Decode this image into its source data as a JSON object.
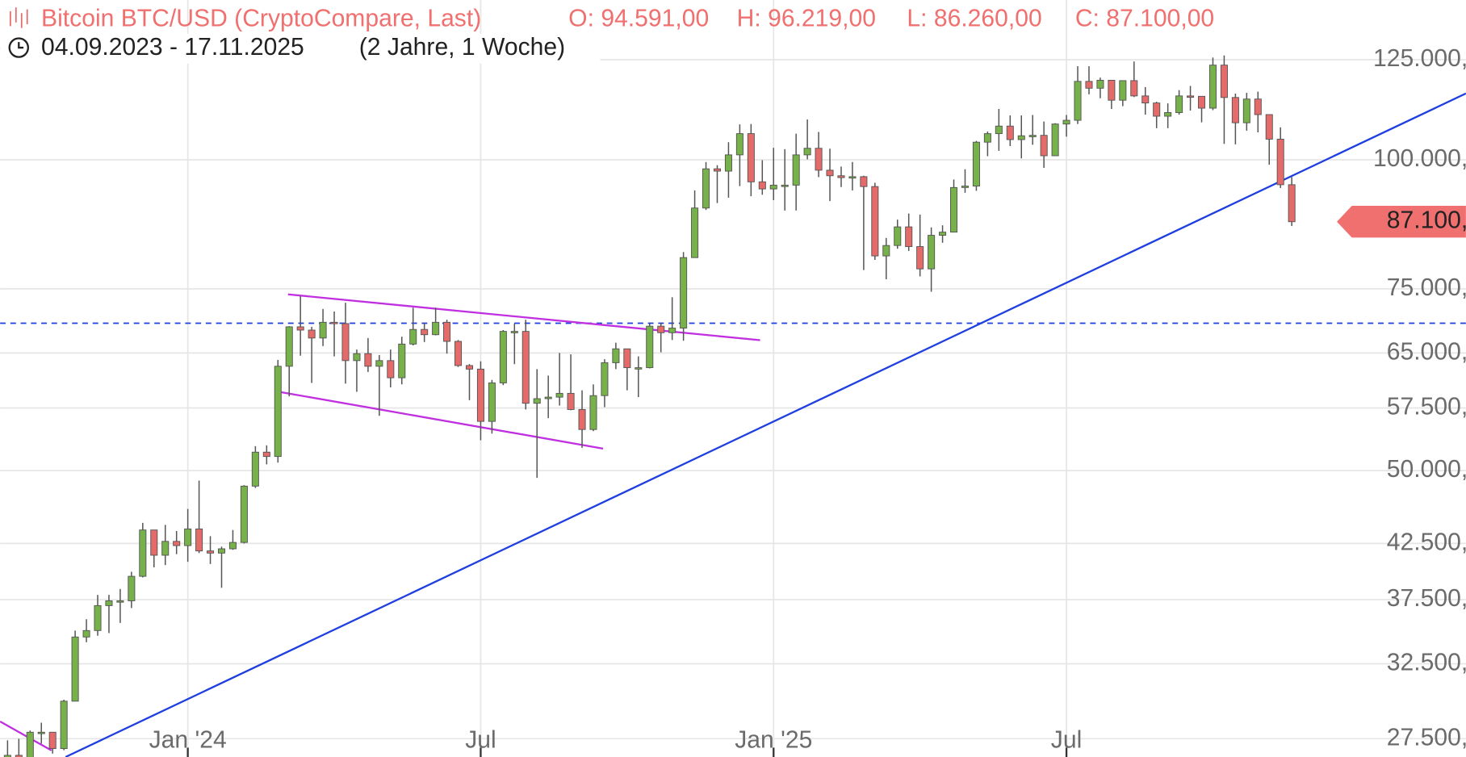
{
  "chart_data": {
    "type": "candlestick",
    "title": "Bitcoin BTC/USD (CryptoCompare, Last)",
    "ohlc_labels": [
      "O: 94.591,00",
      "H: 96.219,00",
      "L: 86.260,00",
      "C: 87.100,00"
    ],
    "date_range": "04.09.2023 - 17.11.2025",
    "duration": "(2 Jahre, 1 Woche)",
    "log_scale": true,
    "grid": true,
    "up_color": "#77b14a",
    "down_color": "#e56b6b",
    "wick_color": "#555555",
    "ylim": [
      26400,
      142800
    ],
    "yticks": [
      {
        "value": 27500,
        "label": "27.500,"
      },
      {
        "value": 32500,
        "label": "32.500,"
      },
      {
        "value": 37500,
        "label": "37.500,"
      },
      {
        "value": 42500,
        "label": "42.500,"
      },
      {
        "value": 50000,
        "label": "50.000,"
      },
      {
        "value": 57500,
        "label": "57.500,"
      },
      {
        "value": 65000,
        "label": "65.000,"
      },
      {
        "value": 75000,
        "label": "75.000,"
      },
      {
        "value": 100000,
        "label": "100.000,"
      },
      {
        "value": 125000,
        "label": "125.000,"
      }
    ],
    "last_price": {
      "value": 87100,
      "label": "87.100,"
    },
    "horizontal_line": 69450,
    "categories": [
      null,
      null,
      null,
      null,
      null,
      null,
      null,
      null,
      null,
      null,
      null,
      null,
      null,
      null,
      null,
      null,
      "Jan '24",
      null,
      null,
      null,
      null,
      null,
      null,
      null,
      null,
      null,
      null,
      null,
      null,
      null,
      null,
      null,
      null,
      null,
      null,
      null,
      null,
      null,
      null,
      null,
      null,
      null,
      "Jul",
      null,
      null,
      null,
      null,
      null,
      null,
      null,
      null,
      null,
      null,
      null,
      null,
      null,
      null,
      null,
      null,
      null,
      null,
      null,
      null,
      null,
      null,
      null,
      null,
      null,
      "Jan '25",
      null,
      null,
      null,
      null,
      null,
      null,
      null,
      null,
      null,
      null,
      null,
      null,
      null,
      null,
      null,
      null,
      null,
      null,
      null,
      null,
      null,
      null,
      null,
      null,
      null,
      "Jul",
      null,
      null,
      null,
      null,
      null,
      null,
      null,
      null,
      null,
      null,
      null,
      null,
      null,
      null,
      null,
      null,
      null,
      null,
      null,
      null
    ],
    "open": [
      25800,
      26500,
      26200,
      27900,
      27900,
      26900,
      29900,
      34500,
      35000,
      37000,
      37400,
      37400,
      39500,
      43800,
      41400,
      42700,
      42300,
      43900,
      41800,
      41600,
      42000,
      42600,
      48300,
      52100,
      51600,
      63100,
      68900,
      68400,
      67200,
      69600,
      69400,
      63900,
      64900,
      63100,
      63900,
      61500,
      66300,
      68500,
      67700,
      69600,
      66700,
      63200,
      62700,
      55800,
      60800,
      68200,
      68200,
      58100,
      58700,
      58900,
      59400,
      57300,
      54800,
      59100,
      63600,
      65600,
      62900,
      62900,
      69000,
      68000,
      68700,
      80400,
      89800,
      98000,
      97500,
      101100,
      106000,
      95200,
      93700,
      94500,
      94500,
      101100,
      102600,
      97700,
      96500,
      96100,
      96300,
      94200,
      80700,
      82600,
      86100,
      82400,
      78400,
      84500,
      85100,
      94000,
      94300,
      104000,
      106000,
      107800,
      104600,
      105500,
      105600,
      100900,
      108300,
      109200,
      119100,
      117300,
      119400,
      114200,
      119300,
      115300,
      113500,
      110200,
      111100,
      115300,
      115200,
      112200,
      123500,
      114900,
      108600,
      114500,
      110600,
      104700,
      94591
    ],
    "high": [
      27400,
      27500,
      28000,
      28500,
      27900,
      30000,
      35000,
      35900,
      37900,
      37900,
      38400,
      39900,
      44500,
      43800,
      44300,
      43700,
      45900,
      48900,
      43200,
      42200,
      43800,
      48400,
      52800,
      52900,
      64000,
      69000,
      73800,
      68900,
      71700,
      71300,
      72700,
      65500,
      67200,
      64700,
      65500,
      67400,
      71900,
      69500,
      71900,
      70000,
      66900,
      63400,
      63800,
      61200,
      68400,
      69400,
      70000,
      62700,
      61800,
      65000,
      64800,
      59800,
      60600,
      64100,
      66500,
      65600,
      64500,
      69400,
      69500,
      73600,
      81400,
      93400,
      99500,
      98800,
      104000,
      108200,
      108300,
      99900,
      102700,
      102400,
      106000,
      109400,
      106400,
      102500,
      98500,
      99500,
      96500,
      95000,
      84000,
      87500,
      88700,
      88500,
      86000,
      86400,
      95700,
      97900,
      104300,
      106500,
      112000,
      110400,
      110400,
      110500,
      108900,
      108500,
      110500,
      123200,
      123200,
      120100,
      119500,
      119300,
      124500,
      117600,
      113800,
      113400,
      116800,
      117900,
      115200,
      125600,
      126200,
      115900,
      116100,
      116400,
      110600,
      107500,
      96219
    ],
    "low": [
      25800,
      26000,
      26000,
      27200,
      26600,
      26800,
      29900,
      34100,
      34600,
      34800,
      35600,
      36800,
      39400,
      40300,
      40500,
      41500,
      40800,
      41600,
      40600,
      38500,
      41900,
      42500,
      48100,
      50700,
      50900,
      59000,
      64600,
      60800,
      66000,
      64500,
      60700,
      59600,
      62300,
      56500,
      60200,
      60600,
      66100,
      66600,
      67600,
      64900,
      63000,
      58500,
      53500,
      54300,
      60500,
      63400,
      57300,
      49200,
      56200,
      57800,
      57200,
      52600,
      54600,
      57600,
      62700,
      59800,
      58900,
      62800,
      65100,
      66900,
      66800,
      80400,
      89400,
      90800,
      91900,
      94300,
      92200,
      92500,
      91400,
      89300,
      89300,
      100100,
      96200,
      91200,
      94100,
      93400,
      78200,
      80000,
      76600,
      82000,
      81600,
      77100,
      74500,
      83100,
      85100,
      92900,
      93300,
      100800,
      102000,
      103100,
      100300,
      103400,
      98200,
      100900,
      105300,
      108300,
      115700,
      114700,
      112000,
      112700,
      115000,
      110600,
      107300,
      107300,
      110600,
      111600,
      108700,
      111700,
      103600,
      103500,
      106700,
      106300,
      98900,
      93900,
      86260
    ],
    "close": [
      26500,
      26200,
      27900,
      27900,
      26900,
      29900,
      34500,
      35000,
      37000,
      37400,
      37400,
      39500,
      43800,
      41400,
      42700,
      42300,
      43900,
      41800,
      41600,
      42000,
      42600,
      48300,
      52100,
      51600,
      63100,
      68900,
      68400,
      67200,
      69600,
      69400,
      63900,
      64900,
      63100,
      63900,
      61500,
      66300,
      68500,
      67700,
      69600,
      66700,
      63200,
      62700,
      55800,
      60800,
      68200,
      68200,
      58100,
      58700,
      58900,
      59400,
      57300,
      54800,
      59100,
      63600,
      65600,
      62900,
      62900,
      69000,
      68000,
      68700,
      80400,
      89800,
      98000,
      97500,
      101100,
      106000,
      95200,
      93700,
      94500,
      94500,
      101100,
      102600,
      97700,
      96500,
      96100,
      96300,
      94200,
      80700,
      82600,
      86100,
      82400,
      78400,
      84500,
      85100,
      94000,
      94300,
      104000,
      106000,
      107800,
      104600,
      105500,
      105600,
      100900,
      108300,
      109200,
      119100,
      117300,
      119400,
      114200,
      119300,
      115300,
      113500,
      110200,
      111100,
      115300,
      115200,
      112200,
      123500,
      114900,
      108600,
      114500,
      110600,
      104700,
      94591,
      87100
    ]
  }
}
